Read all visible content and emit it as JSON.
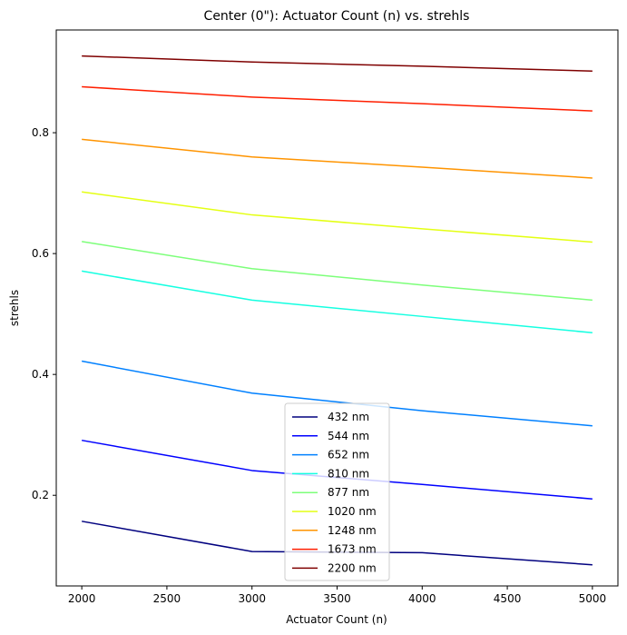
{
  "chart_data": {
    "type": "line",
    "title": "Center (0\"): Actuator Count (n) vs. strehls",
    "xlabel": "Actuator Count (n)",
    "ylabel": "strehls",
    "x": [
      2000,
      3000,
      4000,
      5000
    ],
    "xlim": [
      1850,
      5150
    ],
    "ylim": [
      0.05,
      0.97
    ],
    "xticks": [
      2000,
      2500,
      3000,
      3500,
      4000,
      4500,
      5000
    ],
    "yticks": [
      0.2,
      0.4,
      0.6,
      0.8
    ],
    "ytick_labels": [
      "0.2",
      "0.4",
      "0.6",
      "0.8"
    ],
    "grid": false,
    "legend_position": "lower-center",
    "series": [
      {
        "name": "432 nm",
        "color": "#00007f",
        "values": [
          0.157,
          0.107,
          0.105,
          0.085
        ]
      },
      {
        "name": "544 nm",
        "color": "#0000ff",
        "values": [
          0.291,
          0.241,
          0.218,
          0.194
        ]
      },
      {
        "name": "652 nm",
        "color": "#0080ff",
        "values": [
          0.422,
          0.369,
          0.34,
          0.315
        ]
      },
      {
        "name": "810 nm",
        "color": "#15ffe1",
        "values": [
          0.571,
          0.523,
          0.496,
          0.469
        ]
      },
      {
        "name": "877 nm",
        "color": "#7dff7a",
        "values": [
          0.62,
          0.575,
          0.548,
          0.523
        ]
      },
      {
        "name": "1020 nm",
        "color": "#e4ff13",
        "values": [
          0.702,
          0.664,
          0.641,
          0.619
        ]
      },
      {
        "name": "1248 nm",
        "color": "#ff9400",
        "values": [
          0.789,
          0.76,
          0.743,
          0.725
        ]
      },
      {
        "name": "1673 nm",
        "color": "#ff1e00",
        "values": [
          0.876,
          0.859,
          0.848,
          0.836
        ]
      },
      {
        "name": "2200 nm",
        "color": "#7f0000",
        "values": [
          0.927,
          0.917,
          0.91,
          0.902
        ]
      }
    ]
  }
}
